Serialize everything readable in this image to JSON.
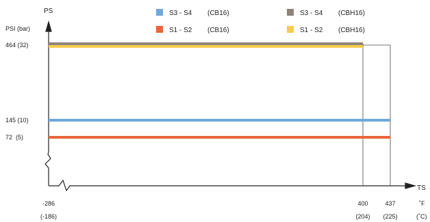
{
  "chart_data": {
    "type": "line",
    "y_axis_title": "PS",
    "y_axis_unit": "PSI (bar)",
    "x_axis_title": "TS",
    "x_unit_f": "˚F",
    "x_unit_c": "(˚C)",
    "x_ticks": [
      {
        "f": "-286",
        "c": "(-186)",
        "value": -286
      },
      {
        "f": "400",
        "c": "(204)",
        "value": 400
      },
      {
        "f": "437",
        "c": "(225)",
        "value": 437
      }
    ],
    "y_ticks": [
      {
        "label": "464 (32)",
        "value": 464
      },
      {
        "label": "145 (10)",
        "value": 145
      },
      {
        "label": "72  (5)",
        "value": 72
      }
    ],
    "xlim": [
      -286,
      437
    ],
    "ylim": [
      0,
      464
    ],
    "series": [
      {
        "name": "S3 - S4",
        "material": "(CB16)",
        "color": "#6fa8dc",
        "x": [
          -286,
          437
        ],
        "y": [
          145,
          145
        ]
      },
      {
        "name": "S1 - S2",
        "material": "(CB16)",
        "color": "#e8673a",
        "x": [
          -286,
          437
        ],
        "y": [
          72,
          72
        ]
      },
      {
        "name": "S3 - S4",
        "material": "(CBH16)",
        "color": "#8f8379",
        "x": [
          -286,
          400
        ],
        "y": [
          464,
          464
        ]
      },
      {
        "name": "S1 - S2",
        "material": "(CBH16)",
        "color": "#f5cc4e",
        "x": [
          -286,
          400
        ],
        "y": [
          464,
          464
        ]
      }
    ],
    "legend_position": "top"
  }
}
